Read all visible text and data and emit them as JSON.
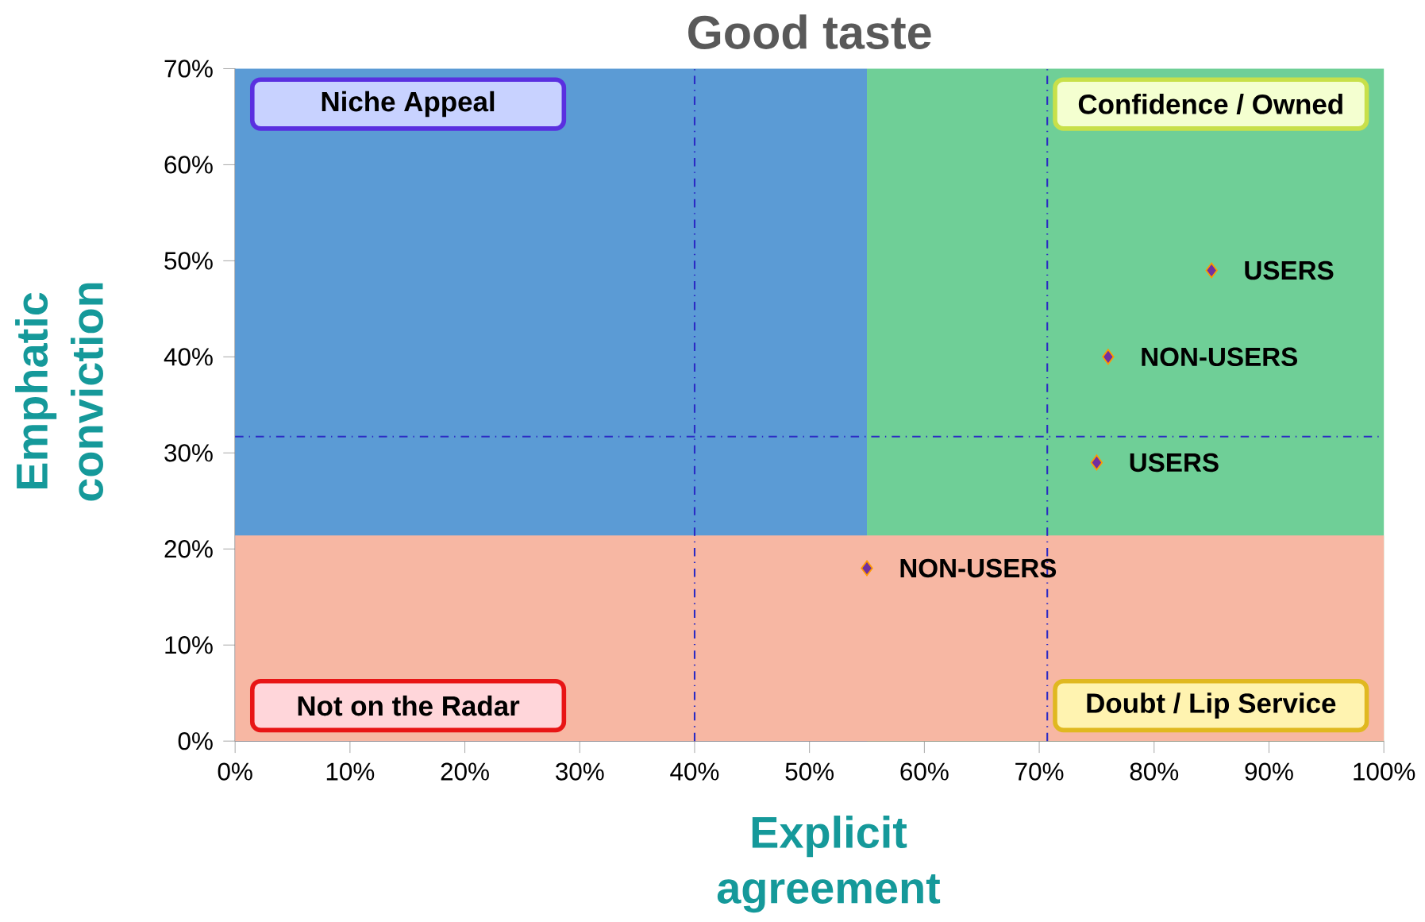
{
  "chart_data": {
    "type": "scatter",
    "title": "Good taste",
    "xlabel": "Explicit agreement",
    "ylabel": "Emphatic conviction",
    "x": [
      85,
      76,
      75,
      55
    ],
    "values": [
      49,
      40,
      29,
      18
    ],
    "value_labels": [
      "USERS",
      "NON-USERS",
      "USERS",
      "NON-USERS"
    ],
    "color": "#7030a0",
    "marker": "diamond",
    "xlim": [
      0,
      100
    ],
    "ylim": [
      0,
      70
    ],
    "xticks": [
      {
        "value": 0,
        "label": "0%"
      },
      {
        "value": 10,
        "label": "10%"
      },
      {
        "value": 20,
        "label": "20%"
      },
      {
        "value": 30,
        "label": "30%"
      },
      {
        "value": 40,
        "label": "40%"
      },
      {
        "value": 50,
        "label": "50%"
      },
      {
        "value": 60,
        "label": "60%"
      },
      {
        "value": 70,
        "label": "70%"
      },
      {
        "value": 80,
        "label": "80%"
      },
      {
        "value": 90,
        "label": "90%"
      },
      {
        "value": 100,
        "label": "100%"
      }
    ],
    "yticks": [
      {
        "value": 0,
        "label": "0%"
      },
      {
        "value": 10,
        "label": "10%"
      },
      {
        "value": 20,
        "label": "20%"
      },
      {
        "value": 30,
        "label": "30%"
      },
      {
        "value": 40,
        "label": "40%"
      },
      {
        "value": 50,
        "label": "50%"
      },
      {
        "value": 60,
        "label": "60%"
      },
      {
        "value": 70,
        "label": "70%"
      }
    ],
    "bands": [
      {
        "axis": "x",
        "from": 0,
        "to": 55,
        "color": "#5b9bd5"
      },
      {
        "axis": "x",
        "from": 55,
        "to": 100,
        "color": "#6fcf97"
      },
      {
        "axis": "y",
        "from": 0,
        "to": 21.4,
        "color": "#f7b7a3"
      }
    ],
    "ref_lines": [
      {
        "axis": "x",
        "value": 40,
        "color": "#2b2bc4",
        "line_style": "dashdot"
      },
      {
        "axis": "x",
        "value": 70.7,
        "color": "#2b2bc4",
        "line_style": "dashdot"
      },
      {
        "axis": "y",
        "value": 31.7,
        "color": "#2b2bc4",
        "line_style": "dashdot"
      }
    ],
    "annotations": [
      "Niche Appeal",
      "Confidence / Owned",
      "Not on the Radar",
      "Doubt / Lip Service"
    ]
  }
}
